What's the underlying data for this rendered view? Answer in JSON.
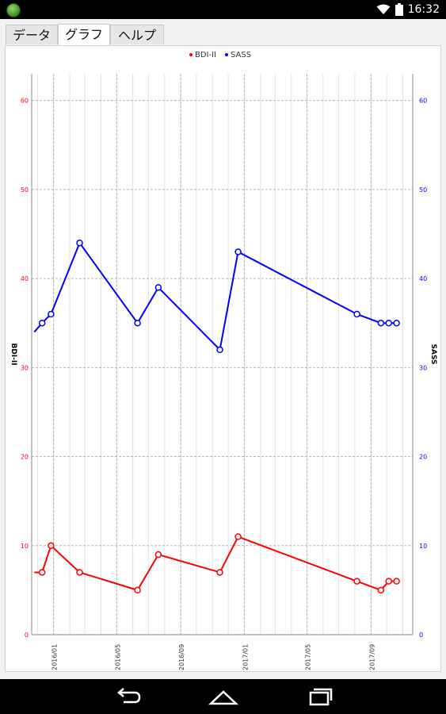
{
  "status_bar": {
    "time": "16:32",
    "icons": [
      "app-icon",
      "wifi-icon",
      "battery-icon"
    ]
  },
  "tabs": [
    {
      "label": "データ",
      "active": false
    },
    {
      "label": "グラフ",
      "active": true
    },
    {
      "label": "ヘルプ",
      "active": false
    }
  ],
  "nav_icons": [
    "back-icon",
    "home-icon",
    "recents-icon"
  ],
  "chart_data": {
    "type": "line",
    "legend": {
      "position": "top-center",
      "entries": [
        "BDI-II",
        "SASS"
      ]
    },
    "grid": true,
    "x_ticks": [
      "2016/01",
      "2016/05",
      "2016/09",
      "2017/01",
      "2017/05",
      "2017/09"
    ],
    "x_range": [
      "2015/11/20",
      "2017/11/20"
    ],
    "y_left": {
      "label": "BDI-II",
      "range": [
        0,
        63
      ],
      "ticks": [
        0,
        10,
        20,
        30,
        40,
        50,
        60
      ],
      "color": "#ff0000"
    },
    "y_right": {
      "label": "SASS",
      "range": [
        0,
        63
      ],
      "ticks": [
        0,
        10,
        20,
        30,
        40,
        50,
        60
      ],
      "color": "#0000ff"
    },
    "series": [
      {
        "name": "BDI-II",
        "axis": "left",
        "color": "#ff0000",
        "points": [
          {
            "x": "2015/11/25",
            "y": 7,
            "marker": false
          },
          {
            "x": "2015/12/10",
            "y": 7
          },
          {
            "x": "2015/12/27",
            "y": 10
          },
          {
            "x": "2016/02/20",
            "y": 7
          },
          {
            "x": "2016/06/10",
            "y": 5
          },
          {
            "x": "2016/07/20",
            "y": 9
          },
          {
            "x": "2016/11/15",
            "y": 7
          },
          {
            "x": "2016/12/20",
            "y": 11
          },
          {
            "x": "2017/08/05",
            "y": 6
          },
          {
            "x": "2017/09/20",
            "y": 5
          },
          {
            "x": "2017/10/05",
            "y": 6
          },
          {
            "x": "2017/10/20",
            "y": 6
          }
        ]
      },
      {
        "name": "SASS",
        "axis": "right",
        "color": "#0000ff",
        "points": [
          {
            "x": "2015/11/25",
            "y": 34,
            "marker": false
          },
          {
            "x": "2015/12/10",
            "y": 35
          },
          {
            "x": "2015/12/27",
            "y": 36
          },
          {
            "x": "2016/02/20",
            "y": 44
          },
          {
            "x": "2016/06/10",
            "y": 35
          },
          {
            "x": "2016/07/20",
            "y": 39
          },
          {
            "x": "2016/11/15",
            "y": 32
          },
          {
            "x": "2016/12/20",
            "y": 43
          },
          {
            "x": "2017/08/05",
            "y": 36
          },
          {
            "x": "2017/09/20",
            "y": 35
          },
          {
            "x": "2017/10/05",
            "y": 35
          },
          {
            "x": "2017/10/20",
            "y": 35
          }
        ]
      }
    ]
  }
}
